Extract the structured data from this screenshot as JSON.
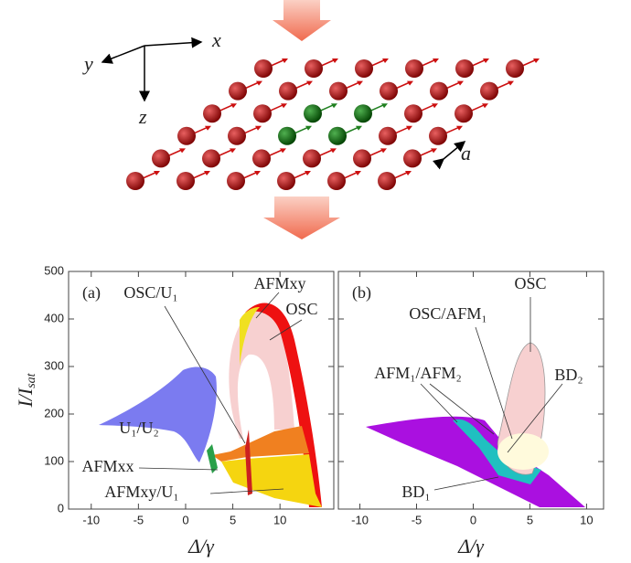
{
  "illustration": {
    "x_label": "x",
    "y_label": "y",
    "z_label": "z",
    "spacing_label": "a"
  },
  "chart_data": [
    {
      "type": "phase",
      "panel": "(a)",
      "xlabel": "Δ/γ",
      "ylabel": "I/I",
      "ylabel_sub": "sat",
      "xlim": [
        -12.4,
        15.7
      ],
      "ylim": [
        0,
        500
      ],
      "xticks": [
        -10,
        -5,
        0,
        5,
        10
      ],
      "yticks": [
        0,
        100,
        200,
        300,
        400,
        500
      ],
      "annotations": [
        "OSC/U₁",
        "AFMxy",
        "OSC",
        "U₁/U₂",
        "AFMxx",
        "AFMxy/U₁"
      ]
    },
    {
      "type": "phase",
      "panel": "(b)",
      "xlabel": "Δ/γ",
      "xlim": [
        -11.9,
        11.5
      ],
      "ylim": [
        0,
        500
      ],
      "xticks": [
        -10,
        -5,
        0,
        5,
        10
      ],
      "yticks": [
        0,
        100,
        200,
        300,
        400,
        500
      ],
      "annotations": [
        "OSC",
        "OSC/AFM₁",
        "AFM₁/AFM₂",
        "BD₂",
        "BD₁"
      ]
    }
  ]
}
